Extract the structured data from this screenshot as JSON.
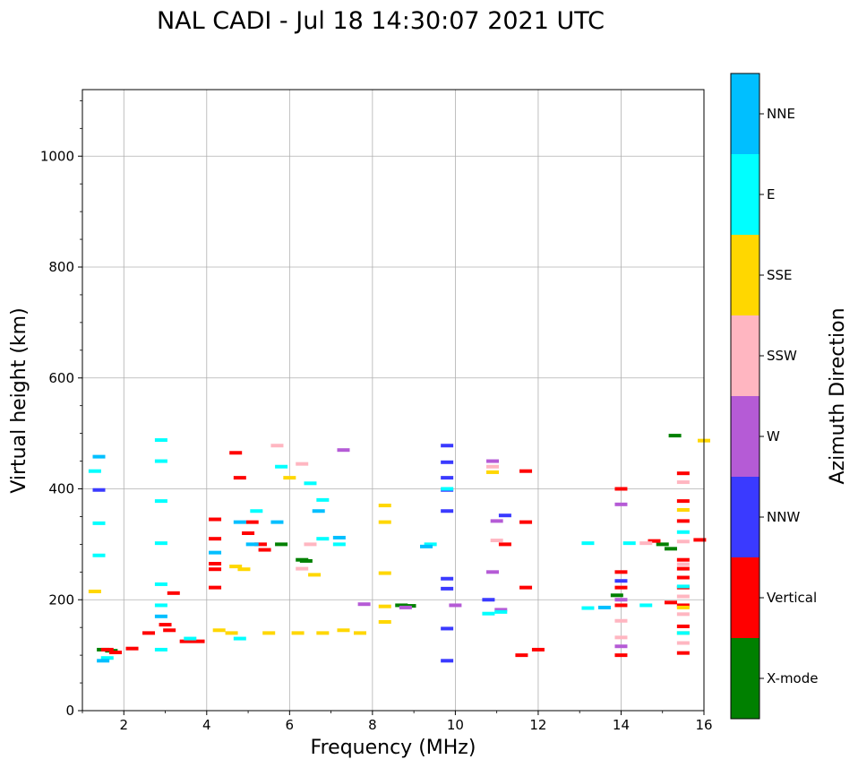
{
  "chart_data": {
    "type": "scatter",
    "title": "NAL CADI - Jul 18 14:30:07 2021 UTC",
    "xlabel": "Frequency (MHz)",
    "ylabel": "Virtual height (km)",
    "xlim": [
      1,
      16
    ],
    "ylim": [
      0,
      1120
    ],
    "x_ticks": [
      2,
      4,
      6,
      8,
      10,
      12,
      14,
      16
    ],
    "y_ticks": [
      0,
      200,
      400,
      600,
      800,
      1000
    ],
    "grid": true,
    "colorbar": {
      "label": "Azimuth Direction",
      "categories": [
        {
          "name": "X-mode",
          "color": "#008000"
        },
        {
          "name": "Vertical",
          "color": "#ff0000"
        },
        {
          "name": "NNW",
          "color": "#3a3aff"
        },
        {
          "name": "W",
          "color": "#b55bd6"
        },
        {
          "name": "SSW",
          "color": "#ffb6c1"
        },
        {
          "name": "SSE",
          "color": "#ffd700"
        },
        {
          "name": "E",
          "color": "#00ffff"
        },
        {
          "name": "NNE",
          "color": "#00bfff"
        }
      ]
    },
    "series": [
      {
        "name": "X-mode",
        "points": [
          [
            1.5,
            110
          ],
          [
            1.7,
            108
          ],
          [
            6.3,
            272
          ],
          [
            6.4,
            270
          ],
          [
            5.8,
            300
          ],
          [
            8.7,
            190
          ],
          [
            8.9,
            189
          ],
          [
            13.9,
            208
          ],
          [
            15.0,
            300
          ],
          [
            15.2,
            292
          ],
          [
            15.3,
            496
          ]
        ]
      },
      {
        "name": "Vertical",
        "points": [
          [
            1.6,
            110
          ],
          [
            1.8,
            105
          ],
          [
            2.2,
            112
          ],
          [
            2.6,
            140
          ],
          [
            3.0,
            155
          ],
          [
            3.1,
            145
          ],
          [
            3.5,
            125
          ],
          [
            3.8,
            125
          ],
          [
            3.2,
            212
          ],
          [
            4.2,
            222
          ],
          [
            4.2,
            255
          ],
          [
            4.2,
            265
          ],
          [
            4.2,
            310
          ],
          [
            4.2,
            345
          ],
          [
            4.7,
            465
          ],
          [
            4.8,
            420
          ],
          [
            5.0,
            320
          ],
          [
            5.3,
            300
          ],
          [
            5.4,
            290
          ],
          [
            5.1,
            340
          ],
          [
            11.2,
            300
          ],
          [
            11.7,
            432
          ],
          [
            11.7,
            340
          ],
          [
            11.7,
            222
          ],
          [
            11.6,
            100
          ],
          [
            12.0,
            110
          ],
          [
            14.0,
            400
          ],
          [
            14.0,
            250
          ],
          [
            14.0,
            222
          ],
          [
            14.0,
            190
          ],
          [
            14.0,
            100
          ],
          [
            14.8,
            306
          ],
          [
            15.2,
            195
          ],
          [
            15.5,
            428
          ],
          [
            15.5,
            378
          ],
          [
            15.5,
            342
          ],
          [
            15.5,
            272
          ],
          [
            15.5,
            256
          ],
          [
            15.5,
            240
          ],
          [
            15.5,
            222
          ],
          [
            15.5,
            190
          ],
          [
            15.5,
            152
          ],
          [
            15.5,
            104
          ],
          [
            15.9,
            308
          ]
        ]
      },
      {
        "name": "NNW",
        "points": [
          [
            1.4,
            398
          ],
          [
            9.8,
            478
          ],
          [
            9.8,
            448
          ],
          [
            9.8,
            420
          ],
          [
            9.8,
            398
          ],
          [
            9.8,
            360
          ],
          [
            9.8,
            238
          ],
          [
            9.8,
            220
          ],
          [
            9.8,
            148
          ],
          [
            9.8,
            90
          ],
          [
            10.8,
            200
          ],
          [
            11.2,
            352
          ],
          [
            14.0,
            234
          ]
        ]
      },
      {
        "name": "W",
        "points": [
          [
            7.3,
            470
          ],
          [
            7.8,
            192
          ],
          [
            8.8,
            186
          ],
          [
            10.0,
            190
          ],
          [
            10.9,
            450
          ],
          [
            10.9,
            250
          ],
          [
            11.0,
            342
          ],
          [
            11.1,
            182
          ],
          [
            14.0,
            372
          ],
          [
            14.0,
            200
          ],
          [
            14.0,
            116
          ]
        ]
      },
      {
        "name": "SSW",
        "points": [
          [
            5.7,
            478
          ],
          [
            6.3,
            445
          ],
          [
            6.5,
            300
          ],
          [
            6.3,
            256
          ],
          [
            10.9,
            440
          ],
          [
            11.0,
            307
          ],
          [
            14.0,
            162
          ],
          [
            14.0,
            132
          ],
          [
            14.6,
            302
          ],
          [
            15.5,
            412
          ],
          [
            15.5,
            305
          ],
          [
            15.5,
            264
          ],
          [
            15.5,
            206
          ],
          [
            15.5,
            174
          ],
          [
            15.5,
            122
          ]
        ]
      },
      {
        "name": "SSE",
        "points": [
          [
            1.3,
            215
          ],
          [
            4.3,
            145
          ],
          [
            4.6,
            140
          ],
          [
            5.5,
            140
          ],
          [
            6.2,
            140
          ],
          [
            6.8,
            140
          ],
          [
            7.3,
            145
          ],
          [
            7.7,
            140
          ],
          [
            4.7,
            260
          ],
          [
            4.9,
            255
          ],
          [
            6.0,
            420
          ],
          [
            6.6,
            245
          ],
          [
            8.3,
            370
          ],
          [
            8.3,
            340
          ],
          [
            8.3,
            248
          ],
          [
            8.3,
            188
          ],
          [
            8.3,
            160
          ],
          [
            10.9,
            430
          ],
          [
            15.5,
            362
          ],
          [
            15.5,
            186
          ],
          [
            15.5,
            140
          ],
          [
            16.0,
            487
          ]
        ]
      },
      {
        "name": "E",
        "points": [
          [
            1.3,
            432
          ],
          [
            1.4,
            338
          ],
          [
            1.4,
            280
          ],
          [
            1.6,
            95
          ],
          [
            2.9,
            488
          ],
          [
            2.9,
            450
          ],
          [
            2.9,
            378
          ],
          [
            2.9,
            302
          ],
          [
            2.9,
            228
          ],
          [
            2.9,
            190
          ],
          [
            2.9,
            110
          ],
          [
            3.6,
            130
          ],
          [
            4.8,
            130
          ],
          [
            5.2,
            360
          ],
          [
            5.8,
            440
          ],
          [
            6.5,
            410
          ],
          [
            6.8,
            380
          ],
          [
            6.8,
            310
          ],
          [
            7.2,
            300
          ],
          [
            9.4,
            300
          ],
          [
            9.8,
            400
          ],
          [
            10.8,
            175
          ],
          [
            11.1,
            178
          ],
          [
            13.2,
            302
          ],
          [
            13.2,
            185
          ],
          [
            14.2,
            302
          ],
          [
            14.6,
            190
          ],
          [
            15.5,
            322
          ],
          [
            15.5,
            224
          ],
          [
            15.5,
            140
          ]
        ]
      },
      {
        "name": "NNE",
        "points": [
          [
            1.4,
            458
          ],
          [
            1.5,
            90
          ],
          [
            2.9,
            170
          ],
          [
            4.2,
            285
          ],
          [
            4.8,
            340
          ],
          [
            5.1,
            300
          ],
          [
            5.7,
            340
          ],
          [
            6.7,
            360
          ],
          [
            7.2,
            312
          ],
          [
            9.3,
            296
          ],
          [
            13.6,
            186
          ]
        ]
      }
    ]
  }
}
